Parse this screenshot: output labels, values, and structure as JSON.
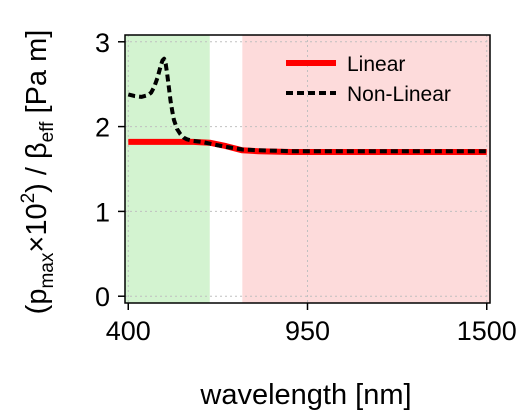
{
  "chart_data": {
    "type": "line",
    "title": "",
    "xlabel": "wavelength [nm]",
    "ylabel": {
      "prefix": "(p",
      "sub1": "max",
      "mid": "×10",
      "sup": "2",
      "rest": ") / β",
      "sub2": "eff",
      "unit": " [Pa m]"
    },
    "xlim": [
      390,
      1510
    ],
    "ylim": [
      -0.08,
      3.08
    ],
    "xticks": [
      400,
      950,
      1500
    ],
    "yticks": [
      0,
      1,
      2,
      3
    ],
    "grid": true,
    "legend_position": "top-right",
    "bands": [
      {
        "x0": 390,
        "x1": 650,
        "color": "#c8f0c4",
        "opacity": 0.8
      },
      {
        "x0": 750,
        "x1": 1510,
        "color": "#fdd5d5",
        "opacity": 0.85
      }
    ],
    "series": [
      {
        "name": "Linear",
        "color": "#ff0000",
        "style": "solid",
        "x": [
          400,
          500,
          600,
          650,
          700,
          750,
          800,
          900,
          1000,
          1100,
          1200,
          1300,
          1400,
          1500
        ],
        "y": [
          1.82,
          1.82,
          1.82,
          1.81,
          1.77,
          1.72,
          1.71,
          1.7,
          1.7,
          1.7,
          1.7,
          1.7,
          1.7,
          1.7
        ]
      },
      {
        "name": "Non-Linear",
        "color": "#000000",
        "style": "dashed",
        "x": [
          400,
          420,
          440,
          460,
          470,
          480,
          490,
          500,
          505,
          510,
          515,
          520,
          525,
          530,
          535,
          540,
          550,
          560,
          570,
          580,
          600,
          625,
          650,
          700,
          750,
          800,
          900,
          1000,
          1100,
          1200,
          1300,
          1400,
          1500
        ],
        "y": [
          2.38,
          2.36,
          2.35,
          2.37,
          2.4,
          2.47,
          2.58,
          2.72,
          2.78,
          2.8,
          2.74,
          2.6,
          2.45,
          2.3,
          2.18,
          2.08,
          1.97,
          1.91,
          1.87,
          1.85,
          1.83,
          1.82,
          1.8,
          1.76,
          1.73,
          1.72,
          1.71,
          1.71,
          1.71,
          1.71,
          1.71,
          1.71,
          1.71
        ]
      }
    ]
  }
}
